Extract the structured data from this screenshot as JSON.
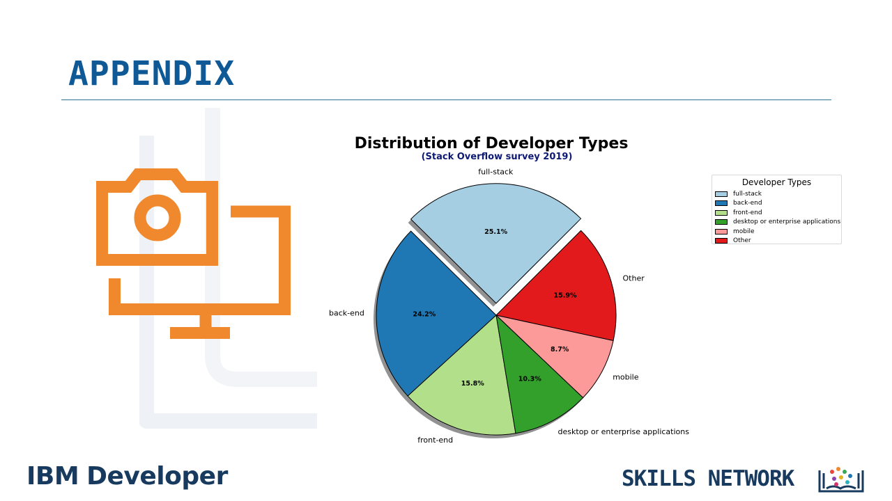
{
  "slide": {
    "title": "APPENDIX",
    "footer_left_brand": "IBM",
    "footer_left_product": "Developer",
    "footer_right": "SKILLS NETWORK"
  },
  "icons": [
    "camera-monitor-icon",
    "skills-network-logo-icon"
  ],
  "colors": {
    "title": "#0f5a96",
    "icon_orange": "#f0892e",
    "footer_navy": "#173a5e"
  },
  "chart_data": {
    "type": "pie",
    "title": "Distribution of Developer Types",
    "subtitle": "(Stack Overflow survey 2019)",
    "legend_title": "Developer Types",
    "legend_position": "right",
    "start_angle_deg": 45,
    "categories": [
      "full-stack",
      "back-end",
      "front-end",
      "desktop or enterprise applications",
      "mobile",
      "Other"
    ],
    "values": [
      25.1,
      24.2,
      15.8,
      10.3,
      8.7,
      15.9
    ],
    "labels": [
      "25.1%",
      "24.2%",
      "15.8%",
      "10.3%",
      "8.7%",
      "15.9%"
    ],
    "explode": [
      0.1,
      0,
      0,
      0,
      0,
      0
    ],
    "shadow": true,
    "colors": [
      "#a6cee3",
      "#1f78b4",
      "#b2df8a",
      "#33a02c",
      "#fb9a99",
      "#e31a1c"
    ]
  }
}
